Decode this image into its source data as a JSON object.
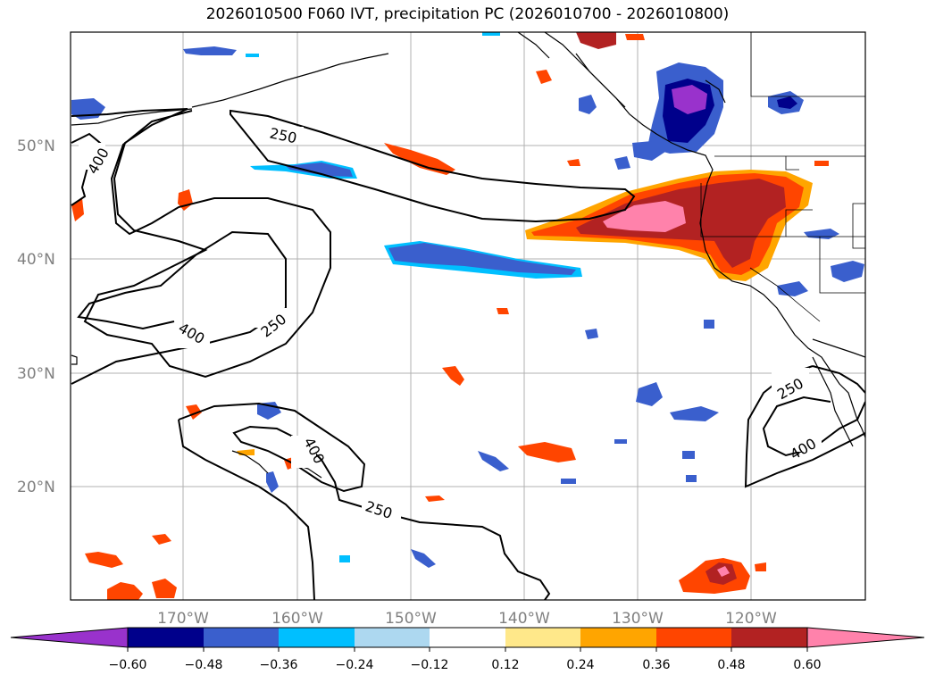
{
  "title": "2026010500 F060 IVT, precipitation PC (2026010700 - 2026010800)",
  "lat_labels": [
    "50°N",
    "40°N",
    "30°N",
    "20°N"
  ],
  "lon_labels": [
    "170°W",
    "160°W",
    "150°W",
    "140°W",
    "130°W",
    "120°W"
  ],
  "contour_labels": [
    "250",
    "400",
    "250",
    "400",
    "400",
    "250",
    "250",
    "400"
  ],
  "colorbar": {
    "ticks": [
      "−0.60",
      "−0.48",
      "−0.36",
      "−0.24",
      "−0.12",
      "0.12",
      "0.24",
      "0.36",
      "0.48",
      "0.60"
    ],
    "colors": [
      "#9932cc",
      "#00008b",
      "#3a5fcd",
      "#00bfff",
      "#add8f0",
      "#ffffff",
      "#ffe88a",
      "#ffa500",
      "#ff4500",
      "#b22222",
      "#ff82ab"
    ]
  }
}
